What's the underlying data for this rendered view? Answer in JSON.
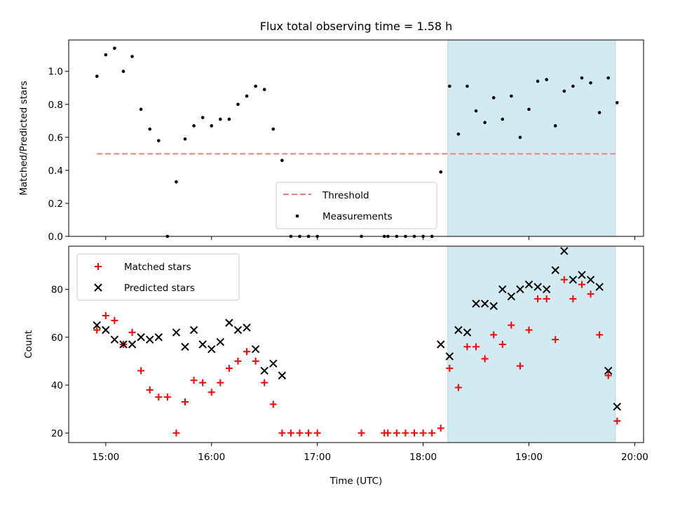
{
  "chart_data": [
    {
      "type": "scatter",
      "title": "Flux total observing time = 1.58 h",
      "ylabel": "Matched/Predicted stars",
      "xlabel": "",
      "xlim": [
        "14:39",
        "20:05"
      ],
      "ylim": [
        0,
        1.19
      ],
      "yticks": [
        "0.0",
        "0.2",
        "0.4",
        "0.6",
        "0.8",
        "1.0"
      ],
      "legend_position": "lower-center",
      "shaded_region": {
        "from": "18:14",
        "to": "19:49",
        "color": "#add8e6"
      },
      "threshold": {
        "name": "Threshold",
        "value": 0.5,
        "from": "14:55",
        "to": "19:49",
        "color": "#f08080"
      },
      "series": [
        {
          "name": "Measurements",
          "color": "#000000",
          "points": [
            [
              "14:55",
              0.97
            ],
            [
              "15:00",
              1.1
            ],
            [
              "15:05",
              1.14
            ],
            [
              "15:10",
              1.0
            ],
            [
              "15:15",
              1.09
            ],
            [
              "15:20",
              0.77
            ],
            [
              "15:25",
              0.65
            ],
            [
              "15:30",
              0.58
            ],
            [
              "15:35",
              0.0
            ],
            [
              "15:40",
              0.33
            ],
            [
              "15:45",
              0.59
            ],
            [
              "15:50",
              0.67
            ],
            [
              "15:55",
              0.72
            ],
            [
              "16:00",
              0.67
            ],
            [
              "16:05",
              0.71
            ],
            [
              "16:10",
              0.71
            ],
            [
              "16:15",
              0.8
            ],
            [
              "16:20",
              0.85
            ],
            [
              "16:25",
              0.91
            ],
            [
              "16:30",
              0.89
            ],
            [
              "16:35",
              0.65
            ],
            [
              "16:40",
              0.46
            ],
            [
              "16:45",
              0.0
            ],
            [
              "16:50",
              0.0
            ],
            [
              "16:55",
              0.0
            ],
            [
              "17:00",
              0.0
            ],
            [
              "17:25",
              0.0
            ],
            [
              "17:38",
              0.0
            ],
            [
              "17:40",
              0.0
            ],
            [
              "17:45",
              0.0
            ],
            [
              "17:50",
              0.0
            ],
            [
              "17:55",
              0.0
            ],
            [
              "18:00",
              0.0
            ],
            [
              "18:05",
              0.0
            ],
            [
              "18:10",
              0.39
            ],
            [
              "18:15",
              0.91
            ],
            [
              "18:20",
              0.62
            ],
            [
              "18:25",
              0.91
            ],
            [
              "18:30",
              0.76
            ],
            [
              "18:35",
              0.69
            ],
            [
              "18:40",
              0.84
            ],
            [
              "18:45",
              0.71
            ],
            [
              "18:50",
              0.85
            ],
            [
              "18:55",
              0.6
            ],
            [
              "19:00",
              0.77
            ],
            [
              "19:05",
              0.94
            ],
            [
              "19:10",
              0.95
            ],
            [
              "19:15",
              0.67
            ],
            [
              "19:20",
              0.88
            ],
            [
              "19:25",
              0.91
            ],
            [
              "19:30",
              0.96
            ],
            [
              "19:35",
              0.93
            ],
            [
              "19:40",
              0.75
            ],
            [
              "19:45",
              0.96
            ],
            [
              "19:50",
              0.81
            ]
          ]
        }
      ]
    },
    {
      "type": "scatter",
      "title": "",
      "ylabel": "Count",
      "xlabel": "Time (UTC)",
      "xlim": [
        "14:39",
        "20:05"
      ],
      "ylim": [
        16,
        98
      ],
      "xticks": [
        "15:00",
        "16:00",
        "17:00",
        "18:00",
        "19:00",
        "20:00"
      ],
      "yticks": [
        "20",
        "40",
        "60",
        "80"
      ],
      "legend_position": "top-left",
      "shaded_region": {
        "from": "18:14",
        "to": "19:49",
        "color": "#add8e6"
      },
      "series": [
        {
          "name": "Matched stars",
          "color": "#ff0000",
          "marker": "+",
          "points": [
            [
              "14:55",
              63
            ],
            [
              "15:00",
              69
            ],
            [
              "15:05",
              67
            ],
            [
              "15:10",
              57
            ],
            [
              "15:15",
              62
            ],
            [
              "15:20",
              46
            ],
            [
              "15:25",
              38
            ],
            [
              "15:30",
              35
            ],
            [
              "15:35",
              35
            ],
            [
              "15:40",
              20
            ],
            [
              "15:45",
              33
            ],
            [
              "15:50",
              42
            ],
            [
              "15:55",
              41
            ],
            [
              "16:00",
              37
            ],
            [
              "16:05",
              41
            ],
            [
              "16:10",
              47
            ],
            [
              "16:15",
              50
            ],
            [
              "16:20",
              54
            ],
            [
              "16:25",
              50
            ],
            [
              "16:30",
              41
            ],
            [
              "16:35",
              32
            ],
            [
              "16:40",
              20
            ],
            [
              "16:45",
              20
            ],
            [
              "16:50",
              20
            ],
            [
              "16:55",
              20
            ],
            [
              "17:00",
              20
            ],
            [
              "17:25",
              20
            ],
            [
              "17:38",
              20
            ],
            [
              "17:40",
              20
            ],
            [
              "17:45",
              20
            ],
            [
              "17:50",
              20
            ],
            [
              "17:55",
              20
            ],
            [
              "18:00",
              20
            ],
            [
              "18:05",
              20
            ],
            [
              "18:10",
              22
            ],
            [
              "18:15",
              47
            ],
            [
              "18:20",
              39
            ],
            [
              "18:25",
              56
            ],
            [
              "18:30",
              56
            ],
            [
              "18:35",
              51
            ],
            [
              "18:40",
              61
            ],
            [
              "18:45",
              57
            ],
            [
              "18:50",
              65
            ],
            [
              "18:55",
              48
            ],
            [
              "19:00",
              63
            ],
            [
              "19:05",
              76
            ],
            [
              "19:10",
              76
            ],
            [
              "19:15",
              59
            ],
            [
              "19:20",
              84
            ],
            [
              "19:25",
              76
            ],
            [
              "19:30",
              82
            ],
            [
              "19:35",
              78
            ],
            [
              "19:40",
              61
            ],
            [
              "19:45",
              44
            ],
            [
              "19:50",
              25
            ]
          ]
        },
        {
          "name": "Predicted stars",
          "color": "#000000",
          "marker": "x",
          "points": [
            [
              "14:55",
              65
            ],
            [
              "15:00",
              63
            ],
            [
              "15:05",
              59
            ],
            [
              "15:10",
              57
            ],
            [
              "15:15",
              57
            ],
            [
              "15:20",
              60
            ],
            [
              "15:25",
              59
            ],
            [
              "15:30",
              60
            ],
            [
              "15:40",
              62
            ],
            [
              "15:45",
              56
            ],
            [
              "15:50",
              63
            ],
            [
              "15:55",
              57
            ],
            [
              "16:00",
              55
            ],
            [
              "16:05",
              58
            ],
            [
              "16:10",
              66
            ],
            [
              "16:15",
              63
            ],
            [
              "16:20",
              64
            ],
            [
              "16:25",
              55
            ],
            [
              "16:30",
              46
            ],
            [
              "16:35",
              49
            ],
            [
              "16:40",
              44
            ],
            [
              "18:10",
              57
            ],
            [
              "18:15",
              52
            ],
            [
              "18:20",
              63
            ],
            [
              "18:25",
              62
            ],
            [
              "18:30",
              74
            ],
            [
              "18:35",
              74
            ],
            [
              "18:40",
              73
            ],
            [
              "18:45",
              80
            ],
            [
              "18:50",
              77
            ],
            [
              "18:55",
              80
            ],
            [
              "19:00",
              82
            ],
            [
              "19:05",
              81
            ],
            [
              "19:10",
              80
            ],
            [
              "19:15",
              88
            ],
            [
              "19:20",
              96
            ],
            [
              "19:25",
              84
            ],
            [
              "19:30",
              86
            ],
            [
              "19:35",
              84
            ],
            [
              "19:40",
              81
            ],
            [
              "19:45",
              46
            ],
            [
              "19:50",
              31
            ]
          ]
        }
      ]
    }
  ]
}
